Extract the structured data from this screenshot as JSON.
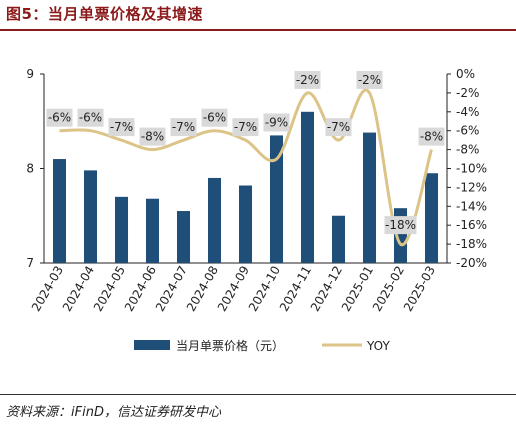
{
  "figure_title": "图5：当月单票价格及其增速",
  "source": "资料来源：iFinD，信达证券研发中心",
  "colors": {
    "bar": "#1f4e79",
    "line": "#dcc488",
    "title": "#8b1a1a",
    "label_bg": "#d9d9d9"
  },
  "chart_data": {
    "type": "bar",
    "categories": [
      "2024-03",
      "2024-04",
      "2024-05",
      "2024-06",
      "2024-07",
      "2024-08",
      "2024-09",
      "2024-10",
      "2024-11",
      "2024-12",
      "2025-01",
      "2025-02",
      "2025-03"
    ],
    "series": [
      {
        "name": "当月单票价格（元）",
        "type": "bar",
        "axis": "left",
        "values": [
          8.1,
          7.98,
          7.7,
          7.68,
          7.55,
          7.9,
          7.82,
          8.35,
          8.6,
          7.5,
          8.38,
          7.58,
          7.95
        ]
      },
      {
        "name": "YOY",
        "type": "line",
        "axis": "right",
        "values": [
          -6,
          -6,
          -7,
          -8,
          -7,
          -6,
          -7,
          -9,
          -2,
          -7,
          -2,
          -18,
          -8
        ],
        "labels": [
          "-6%",
          "-6%",
          "-7%",
          "-8%",
          "-7%",
          "-6%",
          "-7%",
          "-9%",
          "-2%",
          "-7%",
          "-2%",
          "-18%",
          "-8%"
        ]
      }
    ],
    "y_left": {
      "min": 7,
      "max": 9,
      "ticks": [
        7,
        8,
        9
      ]
    },
    "y_right": {
      "min": -20,
      "max": 0,
      "ticks": [
        "0%",
        "-2%",
        "-4%",
        "-6%",
        "-8%",
        "-10%",
        "-12%",
        "-14%",
        "-16%",
        "-18%",
        "-20%"
      ]
    },
    "grid": false,
    "legend_position": "bottom"
  }
}
